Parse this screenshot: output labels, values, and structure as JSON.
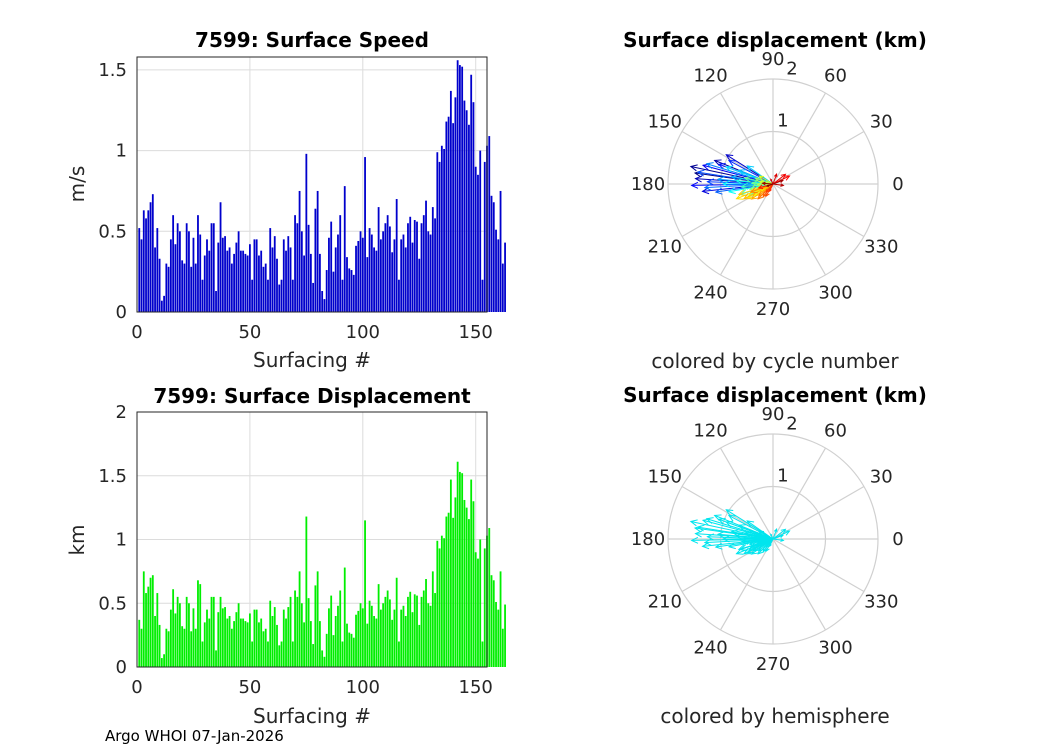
{
  "chart_data": [
    {
      "type": "bar",
      "title": "7599: Surface Speed",
      "xlabel": "Surfacing #",
      "ylabel": "m/s",
      "xlim": [
        0,
        155
      ],
      "ylim": [
        0,
        1.58
      ],
      "xticks": [
        0,
        50,
        100,
        150
      ],
      "yticks": [
        0,
        0.5,
        1,
        1.5
      ],
      "ytick_labels": [
        "0",
        "0.5",
        "1",
        "1.5"
      ],
      "color": "#0000cc",
      "values": [
        0.52,
        0.45,
        0.63,
        0.58,
        0.63,
        0.68,
        0.73,
        0.4,
        0.52,
        0.33,
        0.07,
        0.1,
        0.3,
        0.28,
        0.45,
        0.6,
        0.42,
        0.55,
        0.5,
        0.32,
        0.3,
        0.55,
        0.5,
        0.28,
        0.46,
        0.3,
        0.6,
        0.48,
        0.2,
        0.35,
        0.45,
        0.38,
        0.55,
        0.55,
        0.13,
        0.43,
        0.68,
        0.46,
        0.47,
        0.38,
        0.4,
        0.3,
        0.36,
        0.43,
        0.5,
        0.38,
        0.38,
        0.36,
        0.35,
        0.42,
        0.2,
        0.45,
        0.45,
        0.35,
        0.38,
        0.28,
        0.3,
        0.2,
        0.52,
        0.4,
        0.47,
        0.33,
        0.17,
        0.2,
        0.45,
        0.38,
        0.47,
        0.4,
        0.2,
        0.6,
        0.55,
        0.75,
        0.5,
        0.35,
        0.98,
        0.54,
        0.36,
        0.18,
        0.64,
        0.75,
        0.36,
        0.13,
        0.08,
        0.26,
        0.46,
        0.56,
        0.25,
        0.4,
        0.48,
        0.6,
        0.2,
        0.78,
        0.34,
        0.27,
        0.26,
        0.23,
        0.41,
        0.44,
        0.5,
        0.46,
        0.96,
        0.34,
        0.52,
        0.48,
        0.4,
        0.38,
        0.65,
        0.45,
        0.5,
        0.55,
        0.6,
        0.53,
        0.37,
        0.45,
        0.7,
        0.2,
        0.45,
        0.48,
        0.4,
        0.55,
        0.59,
        0.43,
        0.57,
        0.56,
        0.33,
        0.55,
        0.6,
        0.69,
        0.5,
        0.48,
        0.65,
        0.58,
        0.99,
        0.93,
        1.03,
        1.01,
        1.18,
        1.21,
        1.37,
        1.17,
        1.33,
        1.56,
        1.53,
        1.52,
        1.31,
        1.25,
        1.16,
        1.47,
        1.3,
        0.9,
        0.85,
        1.0,
        0.2,
        0.93,
        1.03,
        1.09,
        0.72,
        0.68,
        0.51,
        0.45,
        0.75,
        0.3,
        0.43
      ]
    },
    {
      "type": "polar-compass",
      "title": "Surface displacement (km)",
      "subtitle": "colored by cycle number",
      "rlim": [
        0,
        2
      ],
      "r_tick_labels": [
        "1",
        "2"
      ],
      "theta_tick_labels": [
        "0",
        "30",
        "60",
        "90",
        "120",
        "150",
        "180",
        "210",
        "240",
        "270",
        "300",
        "330"
      ],
      "color_by": "cycle",
      "colormap": "jet",
      "vectors": [
        {
          "angle": 172,
          "r": 1.5
        },
        {
          "angle": 168,
          "r": 1.6
        },
        {
          "angle": 158,
          "r": 1.2
        },
        {
          "angle": 176,
          "r": 1.48
        },
        {
          "angle": 148,
          "r": 1.05
        },
        {
          "angle": 186,
          "r": 1.35
        },
        {
          "angle": 165,
          "r": 1.38
        },
        {
          "angle": 181,
          "r": 1.55
        },
        {
          "angle": 160,
          "r": 1.1
        },
        {
          "angle": 152,
          "r": 0.95
        },
        {
          "angle": 178,
          "r": 1.25
        },
        {
          "angle": 171,
          "r": 1.45
        },
        {
          "angle": 188,
          "r": 1.1
        },
        {
          "angle": 183,
          "r": 1.3
        },
        {
          "angle": 163,
          "r": 1.32
        },
        {
          "angle": 175,
          "r": 1.05
        },
        {
          "angle": 170,
          "r": 0.8
        },
        {
          "angle": 158,
          "r": 0.7
        },
        {
          "angle": 145,
          "r": 0.6
        },
        {
          "angle": 160,
          "r": 0.95
        },
        {
          "angle": 180,
          "r": 0.95
        },
        {
          "angle": 190,
          "r": 0.85
        },
        {
          "angle": 175,
          "r": 0.7
        },
        {
          "angle": 198,
          "r": 0.65
        },
        {
          "angle": 185,
          "r": 0.6
        },
        {
          "angle": 205,
          "r": 0.5
        },
        {
          "angle": 168,
          "r": 0.55
        },
        {
          "angle": 178,
          "r": 0.4
        },
        {
          "angle": 193,
          "r": 0.45
        },
        {
          "angle": 162,
          "r": 0.35
        },
        {
          "angle": 183,
          "r": 0.3
        },
        {
          "angle": 200,
          "r": 0.35
        },
        {
          "angle": 170,
          "r": 0.25
        },
        {
          "angle": 150,
          "r": 0.3
        },
        {
          "angle": 212,
          "r": 0.42
        },
        {
          "angle": 208,
          "r": 0.55
        },
        {
          "angle": 202,
          "r": 0.75
        },
        {
          "angle": 197,
          "r": 0.68
        },
        {
          "angle": 207,
          "r": 0.62
        },
        {
          "angle": 215,
          "r": 0.5
        },
        {
          "angle": 220,
          "r": 0.35
        },
        {
          "angle": 200,
          "r": 0.45
        },
        {
          "angle": 225,
          "r": 0.4
        },
        {
          "angle": 232,
          "r": 0.3
        },
        {
          "angle": 240,
          "r": 0.27
        },
        {
          "angle": 230,
          "r": 0.2
        },
        {
          "angle": 245,
          "r": 0.15
        },
        {
          "angle": 195,
          "r": 0.28
        },
        {
          "angle": 26,
          "r": 0.35
        },
        {
          "angle": 38,
          "r": 0.3
        },
        {
          "angle": 70,
          "r": 0.2
        },
        {
          "angle": 115,
          "r": 0.1
        },
        {
          "angle": 352,
          "r": 0.2
        },
        {
          "angle": 20,
          "r": 0.2
        },
        {
          "angle": 176,
          "r": 0.2
        },
        {
          "angle": 200,
          "r": 0.12
        }
      ]
    },
    {
      "type": "bar",
      "title": "7599: Surface Displacement",
      "xlabel": "Surfacing #",
      "ylabel": "km",
      "xlim": [
        0,
        155
      ],
      "ylim": [
        0,
        2
      ],
      "xticks": [
        0,
        50,
        100,
        150
      ],
      "yticks": [
        0,
        0.5,
        1,
        1.5,
        2
      ],
      "ytick_labels": [
        "0",
        "0.5",
        "1",
        "1.5",
        "2"
      ],
      "color": "#00ee00",
      "values": [
        0.37,
        0.3,
        0.75,
        0.58,
        0.63,
        0.7,
        0.72,
        0.4,
        0.58,
        0.33,
        0.07,
        0.1,
        0.3,
        0.28,
        0.45,
        0.61,
        0.42,
        0.55,
        0.5,
        0.32,
        0.3,
        0.55,
        0.5,
        0.28,
        0.46,
        0.3,
        0.68,
        0.65,
        0.2,
        0.35,
        0.45,
        0.38,
        0.55,
        0.55,
        0.13,
        0.43,
        0.55,
        0.46,
        0.47,
        0.38,
        0.4,
        0.3,
        0.36,
        0.43,
        0.5,
        0.38,
        0.38,
        0.36,
        0.35,
        0.42,
        0.2,
        0.45,
        0.45,
        0.35,
        0.38,
        0.28,
        0.3,
        0.2,
        0.52,
        0.4,
        0.47,
        0.33,
        0.17,
        0.2,
        0.45,
        0.38,
        0.47,
        0.55,
        0.2,
        0.6,
        0.55,
        0.75,
        0.5,
        0.35,
        1.18,
        0.54,
        0.36,
        0.18,
        0.64,
        0.75,
        0.36,
        0.13,
        0.08,
        0.26,
        0.46,
        0.56,
        0.25,
        0.4,
        0.48,
        0.6,
        0.2,
        0.78,
        0.34,
        0.27,
        0.26,
        0.23,
        0.41,
        0.44,
        0.5,
        0.46,
        1.15,
        0.34,
        0.52,
        0.48,
        0.4,
        0.38,
        0.65,
        0.45,
        0.5,
        0.55,
        0.6,
        0.53,
        0.37,
        0.45,
        0.7,
        0.2,
        0.45,
        0.48,
        0.4,
        0.55,
        0.59,
        0.43,
        0.57,
        0.56,
        0.33,
        0.55,
        0.6,
        0.69,
        0.5,
        0.48,
        0.75,
        0.58,
        0.99,
        0.93,
        1.03,
        1.01,
        1.18,
        1.21,
        1.47,
        1.17,
        1.33,
        1.61,
        1.53,
        1.52,
        1.31,
        1.25,
        1.16,
        1.47,
        1.3,
        0.9,
        0.85,
        1.0,
        0.2,
        0.93,
        1.03,
        1.09,
        0.72,
        0.68,
        0.51,
        0.45,
        0.75,
        0.3,
        0.49
      ]
    },
    {
      "type": "polar-compass",
      "title": "Surface displacement (km)",
      "subtitle": "colored by hemisphere",
      "rlim": [
        0,
        2
      ],
      "r_tick_labels": [
        "1",
        "2"
      ],
      "theta_tick_labels": [
        "0",
        "30",
        "60",
        "90",
        "120",
        "150",
        "180",
        "210",
        "240",
        "270",
        "300",
        "330"
      ],
      "color_by": "hemisphere",
      "color": "#00e5ee",
      "vectors": [
        {
          "angle": 172,
          "r": 1.5
        },
        {
          "angle": 168,
          "r": 1.6
        },
        {
          "angle": 158,
          "r": 1.2
        },
        {
          "angle": 176,
          "r": 1.48
        },
        {
          "angle": 148,
          "r": 1.05
        },
        {
          "angle": 186,
          "r": 1.35
        },
        {
          "angle": 165,
          "r": 1.38
        },
        {
          "angle": 181,
          "r": 1.55
        },
        {
          "angle": 160,
          "r": 1.1
        },
        {
          "angle": 152,
          "r": 0.95
        },
        {
          "angle": 178,
          "r": 1.25
        },
        {
          "angle": 171,
          "r": 1.45
        },
        {
          "angle": 188,
          "r": 1.1
        },
        {
          "angle": 183,
          "r": 1.3
        },
        {
          "angle": 163,
          "r": 1.32
        },
        {
          "angle": 175,
          "r": 1.05
        },
        {
          "angle": 170,
          "r": 0.8
        },
        {
          "angle": 158,
          "r": 0.7
        },
        {
          "angle": 145,
          "r": 0.6
        },
        {
          "angle": 160,
          "r": 0.95
        },
        {
          "angle": 180,
          "r": 0.95
        },
        {
          "angle": 190,
          "r": 0.85
        },
        {
          "angle": 175,
          "r": 0.7
        },
        {
          "angle": 198,
          "r": 0.65
        },
        {
          "angle": 185,
          "r": 0.6
        },
        {
          "angle": 205,
          "r": 0.5
        },
        {
          "angle": 168,
          "r": 0.55
        },
        {
          "angle": 178,
          "r": 0.4
        },
        {
          "angle": 193,
          "r": 0.45
        },
        {
          "angle": 162,
          "r": 0.35
        },
        {
          "angle": 183,
          "r": 0.3
        },
        {
          "angle": 200,
          "r": 0.35
        },
        {
          "angle": 170,
          "r": 0.25
        },
        {
          "angle": 150,
          "r": 0.3
        },
        {
          "angle": 212,
          "r": 0.42
        },
        {
          "angle": 208,
          "r": 0.55
        },
        {
          "angle": 202,
          "r": 0.75
        },
        {
          "angle": 197,
          "r": 0.68
        },
        {
          "angle": 207,
          "r": 0.62
        },
        {
          "angle": 215,
          "r": 0.5
        },
        {
          "angle": 220,
          "r": 0.35
        },
        {
          "angle": 200,
          "r": 0.45
        },
        {
          "angle": 225,
          "r": 0.4
        },
        {
          "angle": 232,
          "r": 0.3
        },
        {
          "angle": 240,
          "r": 0.27
        },
        {
          "angle": 230,
          "r": 0.2
        },
        {
          "angle": 245,
          "r": 0.15
        },
        {
          "angle": 195,
          "r": 0.28
        },
        {
          "angle": 26,
          "r": 0.35
        },
        {
          "angle": 38,
          "r": 0.3
        },
        {
          "angle": 70,
          "r": 0.2
        },
        {
          "angle": 115,
          "r": 0.1
        },
        {
          "angle": 352,
          "r": 0.2
        },
        {
          "angle": 20,
          "r": 0.2
        },
        {
          "angle": 176,
          "r": 0.2
        },
        {
          "angle": 200,
          "r": 0.12
        }
      ]
    }
  ],
  "footer": "Argo WHOI 07-Jan-2026"
}
